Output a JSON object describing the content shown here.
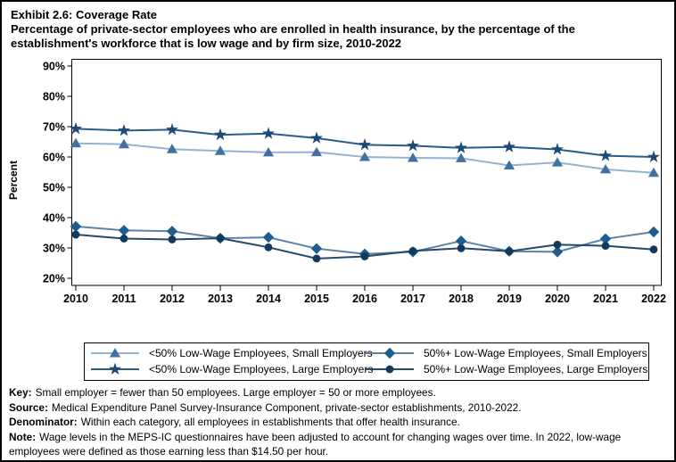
{
  "title": {
    "line1": "Exhibit 2.6: Coverage Rate",
    "line2": "Percentage of private-sector employees who are enrolled in health insurance, by the percentage of the establishment's workforce that is low wage and by firm size, 2010-2022"
  },
  "chart_data": {
    "type": "line",
    "x": [
      2010,
      2011,
      2012,
      2013,
      2014,
      2015,
      2016,
      2017,
      2018,
      2019,
      2020,
      2021,
      2022
    ],
    "ylabel": "Percent",
    "ylim": [
      20,
      90
    ],
    "ytick_step": 10,
    "ytick_format": "percent",
    "grid": false,
    "legend_position": "bottom",
    "series": [
      {
        "name": "<50% Low-Wage Employees, Small Employers",
        "marker": "triangle",
        "line_color": "#96b1d3",
        "marker_color": "#41719f",
        "values": [
          64.5,
          64.2,
          62.6,
          62.0,
          61.5,
          61.6,
          60.0,
          59.7,
          59.6,
          57.2,
          58.2,
          55.9,
          54.8
        ]
      },
      {
        "name": "<50% Low-Wage Employees, Large Employers",
        "marker": "star",
        "line_color": "#2b5c87",
        "marker_color": "#1c4a74",
        "values": [
          69.3,
          68.7,
          69.0,
          67.3,
          67.7,
          66.2,
          64.0,
          63.7,
          63.0,
          63.3,
          62.5,
          60.4,
          60.0
        ]
      },
      {
        "name": "50%+ Low-Wage Employees, Small Employers",
        "marker": "diamond",
        "line_color": "#5d83a6",
        "marker_color": "#205d8d",
        "values": [
          37.1,
          35.8,
          35.5,
          33.2,
          33.5,
          29.8,
          28.0,
          28.7,
          32.3,
          28.9,
          28.7,
          33.0,
          35.3
        ]
      },
      {
        "name": "50%+ Low-Wage Employees, Large Employers",
        "marker": "circle",
        "line_color": "#234a68",
        "marker_color": "#13395c",
        "values": [
          34.4,
          33.1,
          32.8,
          33.2,
          30.2,
          26.5,
          27.2,
          29.0,
          29.9,
          28.9,
          31.1,
          30.7,
          29.5
        ]
      }
    ]
  },
  "footer": [
    {
      "label": "Key:",
      "text": "Small employer = fewer than 50 employees. Large employer = 50 or more employees."
    },
    {
      "label": "Source:",
      "text": "Medical Expenditure Panel Survey-Insurance Component, private-sector establishments, 2010-2022."
    },
    {
      "label": "Denominator:",
      "text": "Within each category, all employees in establishments that offer health insurance."
    },
    {
      "label": "Note:",
      "text": "Wage levels in the MEPS-IC questionnaires have been adjusted to account for changing wages over time. In 2022, low-wage employees were defined as those earning less than $14.50 per hour."
    }
  ]
}
